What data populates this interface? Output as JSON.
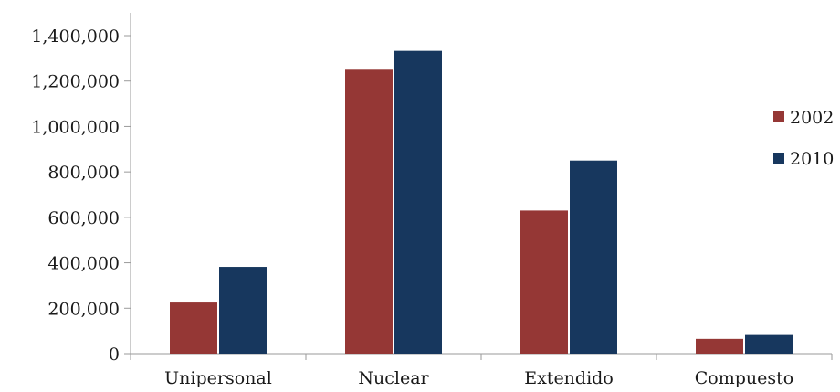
{
  "chart_data": {
    "type": "bar",
    "title": "",
    "xlabel": "",
    "ylabel": "",
    "categories": [
      "Unipersonal",
      "Nuclear",
      "Extendido",
      "Compuesto"
    ],
    "series": [
      {
        "name": "2002",
        "color": "#953735",
        "values": [
          225000,
          1250000,
          630000,
          65000
        ]
      },
      {
        "name": "2010",
        "color": "#17375e",
        "values": [
          382000,
          1333000,
          850000,
          82000
        ]
      }
    ],
    "ylim": [
      0,
      1400000
    ],
    "yticks": [
      0,
      200000,
      400000,
      600000,
      800000,
      1000000,
      1200000,
      1400000
    ],
    "ytick_labels": [
      "0",
      "200,000",
      "400,000",
      "600,000",
      "800,000",
      "1,000,000",
      "1,200,000",
      "1,400,000"
    ],
    "grid": false,
    "legend_position": "right"
  }
}
